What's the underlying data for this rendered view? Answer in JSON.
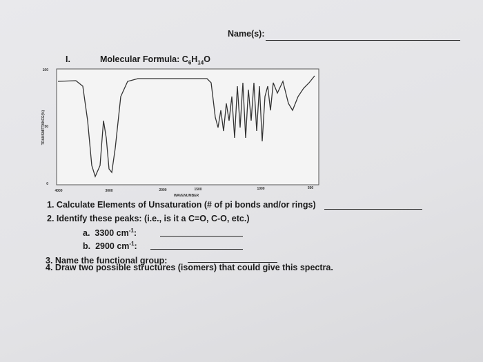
{
  "header": {
    "name_label": "Name(s):"
  },
  "problem": {
    "number": "I.",
    "formula_label": "Molecular Formula:",
    "formula_parts": [
      "C",
      "6",
      "H",
      "14",
      "O"
    ]
  },
  "spectrum": {
    "y_axis_label": "TRANSMITTANCE(%)",
    "x_axis_label": "WAVENUMBER",
    "y_ticks": [
      "100",
      "50",
      "0"
    ],
    "x_ticks": [
      "4000",
      "3000",
      "2000",
      "1500",
      "1000",
      "500"
    ]
  },
  "questions": [
    {
      "number": "1.",
      "text": "Calculate Elements of Unsaturation (# of pi bonds and/or rings)"
    },
    {
      "number": "2.",
      "text": "Identify these peaks: (i.e., is it a C=O, C-O, etc.)"
    },
    {
      "number": "3.",
      "text": "Name the functional group:"
    },
    {
      "number": "4.",
      "text": "Draw two possible structures (isomers) that could give this spectra."
    }
  ],
  "peaks": [
    {
      "letter": "a.",
      "text": "3300 cm",
      "sup": "-1",
      "suffix": ":"
    },
    {
      "letter": "b.",
      "text": "2900 cm",
      "sup": "-1",
      "suffix": ":"
    }
  ]
}
